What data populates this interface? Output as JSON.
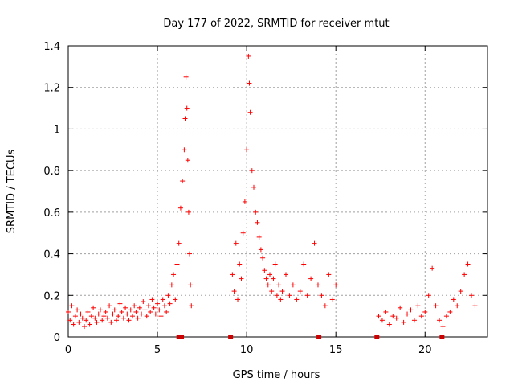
{
  "chart_data": {
    "type": "scatter",
    "title": "Day 177 of 2022, SRMTID for receiver mtut",
    "xlabel": "GPS time / hours",
    "ylabel": "SRMTID / TECUs",
    "xlim": [
      0,
      23.5
    ],
    "ylim": [
      0,
      1.4
    ],
    "x_ticks": [
      0,
      5,
      10,
      15,
      20
    ],
    "x_tick_labels": [
      "0",
      "5",
      "10",
      "15",
      "20"
    ],
    "y_ticks": [
      0,
      0.2,
      0.4,
      0.6,
      0.8,
      1.0,
      1.2,
      1.4
    ],
    "y_tick_labels": [
      "0",
      "0.2",
      "0.4",
      "0.6",
      "0.8",
      "1",
      "1.2",
      "1.4"
    ],
    "grid": true,
    "marker": "plus",
    "colors": {
      "points": "#ff0000",
      "gaps": "#cc0000",
      "grid": "#a0a0a0",
      "axes": "#000000"
    },
    "series": [
      {
        "name": "SRMTID",
        "x": [
          0.0,
          0.1,
          0.2,
          0.3,
          0.4,
          0.5,
          0.6,
          0.7,
          0.8,
          0.9,
          1.0,
          1.1,
          1.2,
          1.3,
          1.4,
          1.5,
          1.6,
          1.7,
          1.8,
          1.9,
          2.0,
          2.1,
          2.2,
          2.3,
          2.4,
          2.5,
          2.6,
          2.7,
          2.8,
          2.9,
          3.0,
          3.1,
          3.2,
          3.3,
          3.4,
          3.5,
          3.6,
          3.7,
          3.8,
          3.9,
          4.0,
          4.1,
          4.2,
          4.3,
          4.4,
          4.5,
          4.6,
          4.7,
          4.8,
          4.9,
          5.0,
          5.1,
          5.2,
          5.3,
          5.4,
          5.5,
          5.6,
          5.7,
          5.8,
          5.9,
          6.0,
          6.1,
          6.2,
          6.3,
          6.4,
          6.5,
          6.55,
          6.6,
          6.65,
          6.7,
          6.75,
          6.8,
          6.85,
          6.9,
          9.2,
          9.3,
          9.4,
          9.5,
          9.6,
          9.7,
          9.8,
          9.9,
          10.0,
          10.1,
          10.15,
          10.2,
          10.3,
          10.4,
          10.5,
          10.6,
          10.7,
          10.8,
          10.9,
          11.0,
          11.1,
          11.2,
          11.3,
          11.4,
          11.5,
          11.6,
          11.7,
          11.8,
          11.9,
          12.0,
          12.2,
          12.4,
          12.6,
          12.8,
          13.0,
          13.2,
          13.4,
          13.6,
          13.8,
          14.0,
          14.2,
          14.4,
          14.6,
          14.8,
          15.0,
          17.4,
          17.6,
          17.8,
          18.0,
          18.2,
          18.4,
          18.6,
          18.8,
          19.0,
          19.2,
          19.4,
          19.6,
          19.8,
          20.0,
          20.2,
          20.4,
          20.6,
          20.8,
          21.0,
          21.2,
          21.4,
          21.6,
          21.8,
          22.0,
          22.2,
          22.4,
          22.6,
          22.8
        ],
        "y": [
          0.12,
          0.08,
          0.15,
          0.06,
          0.1,
          0.13,
          0.07,
          0.11,
          0.09,
          0.05,
          0.08,
          0.12,
          0.06,
          0.1,
          0.14,
          0.09,
          0.07,
          0.11,
          0.13,
          0.08,
          0.1,
          0.12,
          0.09,
          0.15,
          0.07,
          0.11,
          0.13,
          0.08,
          0.1,
          0.16,
          0.12,
          0.09,
          0.14,
          0.11,
          0.08,
          0.13,
          0.1,
          0.15,
          0.12,
          0.09,
          0.14,
          0.11,
          0.17,
          0.13,
          0.1,
          0.15,
          0.12,
          0.18,
          0.14,
          0.11,
          0.16,
          0.13,
          0.1,
          0.18,
          0.15,
          0.12,
          0.2,
          0.16,
          0.25,
          0.3,
          0.18,
          0.35,
          0.45,
          0.62,
          0.75,
          0.9,
          1.05,
          1.25,
          1.1,
          0.85,
          0.6,
          0.4,
          0.25,
          0.15,
          0.3,
          0.22,
          0.45,
          0.18,
          0.35,
          0.28,
          0.5,
          0.65,
          0.9,
          1.35,
          1.22,
          1.08,
          0.8,
          0.72,
          0.6,
          0.55,
          0.48,
          0.42,
          0.38,
          0.32,
          0.28,
          0.25,
          0.3,
          0.22,
          0.28,
          0.35,
          0.2,
          0.25,
          0.18,
          0.22,
          0.3,
          0.2,
          0.25,
          0.18,
          0.22,
          0.35,
          0.2,
          0.28,
          0.45,
          0.25,
          0.2,
          0.15,
          0.3,
          0.18,
          0.25,
          0.1,
          0.08,
          0.12,
          0.06,
          0.1,
          0.09,
          0.14,
          0.07,
          0.11,
          0.13,
          0.08,
          0.15,
          0.1,
          0.12,
          0.2,
          0.33,
          0.15,
          0.08,
          0.05,
          0.1,
          0.12,
          0.18,
          0.15,
          0.22,
          0.3,
          0.35,
          0.2,
          0.15
        ]
      }
    ],
    "gap_markers_x": [
      6.2,
      6.35,
      9.1,
      14.05,
      17.3,
      20.95
    ]
  }
}
